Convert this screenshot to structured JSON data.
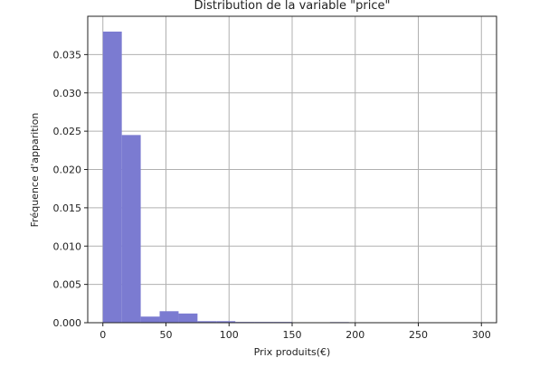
{
  "chart_data": {
    "type": "bar",
    "title": "Distribution de la variable \"price\"",
    "xlabel": "Prix produits(€)",
    "ylabel": "Fréquence d'apparition",
    "xlim": [
      -12,
      312
    ],
    "ylim": [
      0,
      0.04
    ],
    "grid": true,
    "bar_color": "#7b7bd1",
    "x_ticks": [
      0,
      50,
      100,
      150,
      200,
      250,
      300
    ],
    "x_tick_labels": [
      "0",
      "50",
      "100",
      "150",
      "200",
      "250",
      "300"
    ],
    "y_ticks": [
      0,
      0.005,
      0.01,
      0.015,
      0.02,
      0.025,
      0.03,
      0.035
    ],
    "y_tick_labels": [
      "0.000",
      "0.005",
      "0.010",
      "0.015",
      "0.020",
      "0.025",
      "0.030",
      "0.035"
    ],
    "bins": [
      {
        "x0": 0,
        "x1": 15,
        "value": 0.038
      },
      {
        "x0": 15,
        "x1": 30,
        "value": 0.0245
      },
      {
        "x0": 30,
        "x1": 45,
        "value": 0.0008
      },
      {
        "x0": 45,
        "x1": 60,
        "value": 0.0015
      },
      {
        "x0": 60,
        "x1": 75,
        "value": 0.0012
      },
      {
        "x0": 75,
        "x1": 90,
        "value": 0.0002
      },
      {
        "x0": 90,
        "x1": 105,
        "value": 0.0002
      },
      {
        "x0": 105,
        "x1": 120,
        "value": 0.0001
      },
      {
        "x0": 120,
        "x1": 135,
        "value": 0.0001
      },
      {
        "x0": 135,
        "x1": 150,
        "value": 0.0001
      },
      {
        "x0": 150,
        "x1": 165,
        "value": 5e-05
      },
      {
        "x0": 165,
        "x1": 180,
        "value": 3e-05
      },
      {
        "x0": 180,
        "x1": 195,
        "value": 8e-05
      },
      {
        "x0": 195,
        "x1": 210,
        "value": 3e-05
      },
      {
        "x0": 210,
        "x1": 225,
        "value": 2e-05
      },
      {
        "x0": 225,
        "x1": 240,
        "value": 6e-05
      },
      {
        "x0": 240,
        "x1": 255,
        "value": 2e-05
      },
      {
        "x0": 255,
        "x1": 270,
        "value": 1e-05
      },
      {
        "x0": 270,
        "x1": 285,
        "value": 1e-05
      },
      {
        "x0": 285,
        "x1": 300,
        "value": 1e-05
      }
    ]
  }
}
